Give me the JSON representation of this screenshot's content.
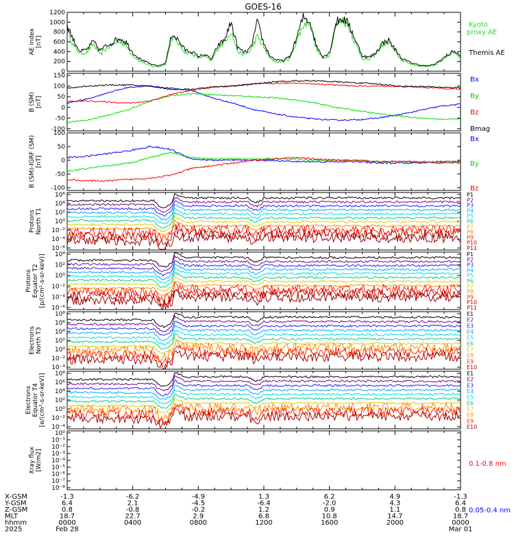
{
  "title": "GOES-16",
  "chart_data": [
    {
      "panel": "ae",
      "type": "line",
      "ylabel": [
        "AE index",
        "[nT]"
      ],
      "ylim": [
        0,
        1200
      ],
      "yticks": [
        "0",
        "200",
        "400",
        "600",
        "800",
        "1000",
        "1200"
      ],
      "series": [
        {
          "name": "Kyoto proxy AE",
          "color": "#22dd22",
          "values": [
            870,
            500,
            360,
            380,
            560,
            330,
            470,
            540,
            620,
            520,
            320,
            210,
            150,
            100,
            90,
            140,
            700,
            560,
            380,
            360,
            270,
            310,
            200,
            470,
            600,
            820,
            400,
            330,
            420,
            720,
            480,
            250,
            180,
            200,
            260,
            620,
            930,
            1030,
            450,
            260,
            330,
            920,
            1080,
            880,
            560,
            260,
            230,
            340,
            520,
            600,
            400,
            220,
            170,
            120,
            100,
            90,
            120,
            200,
            310,
            400,
            260
          ]
        },
        {
          "name": "Themis AE",
          "color": "#000000",
          "values": [
            950,
            620,
            400,
            440,
            610,
            420,
            520,
            600,
            680,
            590,
            380,
            260,
            190,
            130,
            110,
            170,
            780,
            620,
            430,
            400,
            300,
            340,
            240,
            520,
            640,
            1000,
            480,
            380,
            460,
            1000,
            560,
            300,
            220,
            220,
            300,
            680,
            1100,
            1020,
            520,
            300,
            370,
            1000,
            1080,
            950,
            620,
            320,
            280,
            360,
            560,
            640,
            450,
            260,
            200,
            150,
            120,
            110,
            140,
            230,
            330,
            420,
            300
          ]
        }
      ],
      "legend": [
        {
          "text": "Kyoto",
          "color": "#22dd22"
        },
        {
          "text": "proxy AE",
          "color": "#22dd22"
        },
        {
          "text": "Themis AE",
          "color": "#000000"
        }
      ]
    },
    {
      "panel": "bsm",
      "type": "line",
      "ylabel": [
        "B (SM)",
        "[nT]"
      ],
      "ylim": [
        -110,
        160
      ],
      "yticks": [
        "-100",
        "-50",
        "0",
        "50",
        "100",
        "150"
      ],
      "series": [
        {
          "name": "Bx",
          "color": "#0000ff",
          "values": [
            20,
            40,
            70,
            95,
            100,
            90,
            80,
            45,
            20,
            -10,
            -30,
            -45,
            -55,
            -60,
            -58,
            -50,
            -35,
            -15,
            5,
            15
          ]
        },
        {
          "name": "By",
          "color": "#00dd00",
          "values": [
            -70,
            -60,
            -35,
            -10,
            30,
            55,
            65,
            60,
            55,
            50,
            45,
            35,
            20,
            0,
            -15,
            -30,
            -40,
            -50,
            -55,
            -55
          ]
        },
        {
          "name": "Bz",
          "color": "#ff0000",
          "values": [
            28,
            30,
            25,
            20,
            30,
            60,
            80,
            95,
            100,
            110,
            112,
            115,
            110,
            105,
            100,
            100,
            98,
            95,
            90,
            85
          ]
        },
        {
          "name": "Bmag",
          "color": "#000000",
          "values": [
            90,
            100,
            105,
            105,
            100,
            85,
            85,
            95,
            100,
            110,
            120,
            125,
            125,
            120,
            115,
            110,
            100,
            98,
            95,
            92
          ]
        }
      ],
      "legend": [
        {
          "text": "Bx",
          "color": "#0000ff"
        },
        {
          "text": "By",
          "color": "#00cc00"
        },
        {
          "text": "Bz",
          "color": "#ff0000"
        },
        {
          "text": "Bmag",
          "color": "#000000"
        }
      ]
    },
    {
      "panel": "bigrf",
      "type": "line",
      "ylabel": [
        "B (SM)-IGRF (SM)",
        "[nT]"
      ],
      "ylim": [
        -110,
        100
      ],
      "yticks": [
        "-100",
        "-50",
        "0",
        "50",
        "100"
      ],
      "series": [
        {
          "name": "Bx",
          "color": "#0000ff",
          "values": [
            10,
            15,
            25,
            35,
            50,
            40,
            5,
            0,
            0,
            0,
            0,
            -5,
            -5,
            -5,
            -5,
            -10,
            -10,
            -10,
            -5,
            -5
          ]
        },
        {
          "name": "By",
          "color": "#00dd00",
          "values": [
            -40,
            -30,
            -20,
            -10,
            10,
            30,
            10,
            5,
            5,
            5,
            5,
            5,
            0,
            0,
            0,
            -5,
            -5,
            -5,
            -5,
            -5
          ]
        },
        {
          "name": "Bz",
          "color": "#ff0000",
          "values": [
            -70,
            -75,
            -75,
            -70,
            -65,
            -55,
            -30,
            -20,
            -10,
            0,
            5,
            10,
            5,
            0,
            0,
            -5,
            -5,
            -5,
            -10,
            -10
          ]
        }
      ],
      "legend": [
        {
          "text": "Bx",
          "color": "#0000ff"
        },
        {
          "text": "By",
          "color": "#00cc00"
        },
        {
          "text": "Bz",
          "color": "#ff0000"
        }
      ]
    },
    {
      "panel": "protons_t1",
      "type": "line",
      "log": true,
      "ylabel": [
        "Protons",
        "North T1"
      ],
      "yticks": [
        "10⁶",
        "10⁴",
        "10²",
        "10⁰",
        "10⁻²",
        "10⁻⁴",
        "10⁻⁶"
      ],
      "legend": [
        {
          "text": "P1",
          "color": "#000000"
        },
        {
          "text": "P2",
          "color": "#7a0090"
        },
        {
          "text": "P3",
          "color": "#2020ff"
        },
        {
          "text": "P4",
          "color": "#00aaff"
        },
        {
          "text": "P5",
          "color": "#00dddd"
        },
        {
          "text": "P6",
          "color": "#00cc88"
        },
        {
          "text": "P7",
          "color": "#ddcc00"
        },
        {
          "text": "P8",
          "color": "#ff8800"
        },
        {
          "text": "P9",
          "color": "#ff2200"
        },
        {
          "text": "P10",
          "color": "#cc0000"
        },
        {
          "text": "P11",
          "color": "#990000"
        }
      ]
    },
    {
      "panel": "protons_t2",
      "type": "line",
      "log": true,
      "ylabel": [
        "Protons",
        "Equator T2",
        "[p/(cm²-s-sr-keV)]"
      ],
      "yticks": [
        "10⁴",
        "10²",
        "10⁰",
        "10⁻²",
        "10⁻⁴",
        "10⁻⁶"
      ],
      "legend": [
        {
          "text": "P1",
          "color": "#000000"
        },
        {
          "text": "P2",
          "color": "#7a0090"
        },
        {
          "text": "P3",
          "color": "#2020ff"
        },
        {
          "text": "P4",
          "color": "#00aaff"
        },
        {
          "text": "P5",
          "color": "#00dddd"
        },
        {
          "text": "P6",
          "color": "#00cc88"
        },
        {
          "text": "P7",
          "color": "#ddcc00"
        },
        {
          "text": "P8",
          "color": "#ff8800"
        },
        {
          "text": "P9",
          "color": "#ff2200"
        },
        {
          "text": "P10",
          "color": "#cc0000"
        },
        {
          "text": "P11",
          "color": "#990000"
        }
      ]
    },
    {
      "panel": "electrons_t3",
      "type": "line",
      "log": true,
      "ylabel": [
        "Electrons",
        "North T3"
      ],
      "yticks": [
        "10⁸",
        "10⁶",
        "10⁴",
        "10²",
        "10⁰",
        "10⁻²",
        "10⁻⁴"
      ],
      "legend": [
        {
          "text": "E1",
          "color": "#000000"
        },
        {
          "text": "E2",
          "color": "#7a0090"
        },
        {
          "text": "E3",
          "color": "#2020ff"
        },
        {
          "text": "E4",
          "color": "#00aaff"
        },
        {
          "text": "E5",
          "color": "#00dddd"
        },
        {
          "text": "E6",
          "color": "#00cc88"
        },
        {
          "text": "E7",
          "color": "#ddcc00"
        },
        {
          "text": "E8",
          "color": "#ff8800"
        },
        {
          "text": "E9",
          "color": "#ff2200"
        },
        {
          "text": "E10",
          "color": "#aa0000"
        }
      ]
    },
    {
      "panel": "electrons_t4",
      "type": "line",
      "log": true,
      "ylabel": [
        "Electrons",
        "Equator T4",
        "[e/(cm²-s-sr-keV)]"
      ],
      "yticks": [
        "10⁸",
        "10⁶",
        "10⁴",
        "10²",
        "10⁰",
        "10⁻²",
        "10⁻⁴"
      ],
      "legend": [
        {
          "text": "E1",
          "color": "#000000"
        },
        {
          "text": "E2",
          "color": "#7a0090"
        },
        {
          "text": "E3",
          "color": "#2020ff"
        },
        {
          "text": "E4",
          "color": "#00aaff"
        },
        {
          "text": "E5",
          "color": "#00dddd"
        },
        {
          "text": "E6",
          "color": "#00cc88"
        },
        {
          "text": "E7",
          "color": "#ddcc00"
        },
        {
          "text": "E8",
          "color": "#ff8800"
        },
        {
          "text": "E9",
          "color": "#ff2200"
        },
        {
          "text": "E10",
          "color": "#aa0000"
        }
      ]
    },
    {
      "panel": "xray",
      "type": "line",
      "log": true,
      "ylabel": [
        "Xray flux",
        "[W/m2]"
      ],
      "yticks": [
        "10⁰",
        "10⁻¹",
        "10⁻²",
        "10⁻³",
        "10⁻⁴",
        "10⁻⁵",
        "10⁻⁶",
        "10⁻⁷",
        "10⁻⁸"
      ],
      "legend": [
        {
          "text": "0.1-0.8 nm",
          "color": "#ff0000"
        },
        {
          "text": "0.05-0.4 nm",
          "color": "#0000ff"
        }
      ]
    }
  ],
  "footer": {
    "row_labels": [
      "X-GSM",
      "Y-GSM",
      "Z-GSM",
      "MLT",
      "hhmm",
      "2025"
    ],
    "columns": [
      [
        "-1.3",
        "6.4",
        "0.8",
        "18.7",
        "0000",
        "Feb 28"
      ],
      [
        "-6.2",
        "2.1",
        "-0.8",
        "22.7",
        "0400",
        ""
      ],
      [
        "-4.9",
        "-4.5",
        "-0.2",
        "2.9",
        "0800",
        ""
      ],
      [
        "1.3",
        "-6.4",
        "1.2",
        "6.8",
        "1200",
        ""
      ],
      [
        "6.2",
        "-2.0",
        "0.9",
        "10.8",
        "1600",
        ""
      ],
      [
        "4.9",
        "4.3",
        "1.1",
        "14.7",
        "2000",
        ""
      ],
      [
        "-1.3",
        "6.4",
        "0.8",
        "18.7",
        "0000",
        "Mar 01"
      ]
    ]
  }
}
